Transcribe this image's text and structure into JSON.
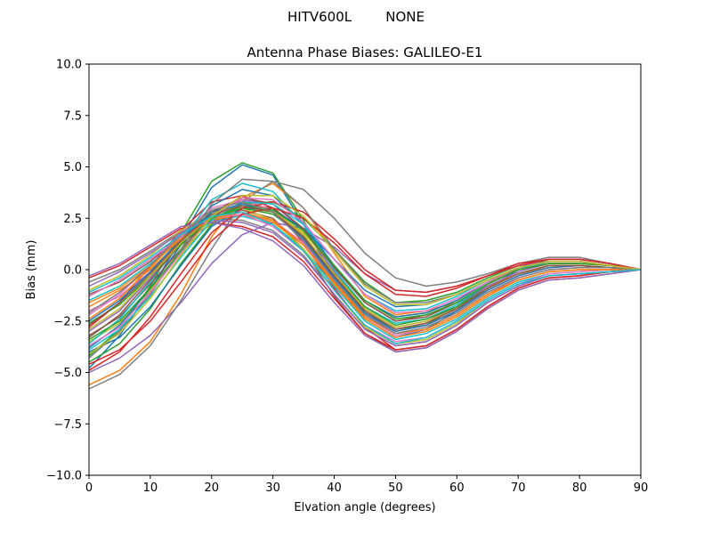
{
  "figure": {
    "suptitle": "HITV600L        NONE"
  },
  "chart_data": {
    "type": "line",
    "title": "Antenna Phase Biases: GALILEO-E1",
    "xlabel": "Elvation angle (degrees)",
    "ylabel": "Bias (mm)",
    "xlim": [
      0,
      90
    ],
    "ylim": [
      -10,
      10
    ],
    "grid": false,
    "x": [
      0,
      5,
      10,
      15,
      20,
      25,
      30,
      35,
      40,
      45,
      50,
      55,
      60,
      65,
      70,
      75,
      80,
      85,
      90
    ],
    "xticks": [
      "0",
      "10",
      "20",
      "30",
      "40",
      "50",
      "60",
      "70",
      "80",
      "90"
    ],
    "xtick_values": [
      0,
      10,
      20,
      30,
      40,
      50,
      60,
      70,
      80,
      90
    ],
    "yticks": [
      "−10.0",
      "−7.5",
      "−5.0",
      "−2.5",
      "0.0",
      "2.5",
      "5.0",
      "7.5",
      "10.0"
    ],
    "ytick_values": [
      -10,
      -7.5,
      -5,
      -2.5,
      0,
      2.5,
      5,
      7.5,
      10
    ],
    "palette": [
      "#1f77b4",
      "#ff7f0e",
      "#2ca02c",
      "#d62728",
      "#9467bd",
      "#8c564b",
      "#e377c2",
      "#7f7f7f",
      "#bcbd22",
      "#17becf"
    ],
    "series": [
      {
        "values": [
          -4.8,
          -3.2,
          -1.0,
          1.5,
          4.0,
          5.1,
          4.6,
          2.2,
          -0.5,
          -2.4,
          -3.3,
          -2.9,
          -2.0,
          -0.9,
          0.0,
          0.4,
          0.4,
          0.2,
          0.0
        ]
      },
      {
        "values": [
          -5.6,
          -4.9,
          -3.5,
          -1.2,
          1.6,
          3.5,
          4.2,
          3.0,
          0.8,
          -1.3,
          -2.2,
          -2.0,
          -1.6,
          -0.8,
          -0.2,
          0.1,
          0.2,
          0.1,
          0.0
        ]
      },
      {
        "values": [
          -4.2,
          -2.9,
          -0.8,
          1.8,
          4.3,
          5.2,
          4.7,
          2.4,
          -0.3,
          -2.1,
          -2.9,
          -2.7,
          -1.8,
          -0.7,
          0.1,
          0.5,
          0.5,
          0.3,
          0.0
        ]
      },
      {
        "values": [
          -2.8,
          -1.6,
          0.2,
          1.9,
          3.3,
          3.6,
          3.0,
          1.3,
          -0.9,
          -2.8,
          -3.9,
          -3.7,
          -2.9,
          -1.8,
          -0.9,
          -0.4,
          -0.3,
          -0.1,
          0.0
        ]
      },
      {
        "values": [
          -3.0,
          -2.0,
          -0.4,
          1.4,
          2.8,
          3.4,
          3.2,
          1.9,
          -0.1,
          -1.9,
          -2.8,
          -2.5,
          -1.8,
          -0.8,
          -0.1,
          0.3,
          0.3,
          0.2,
          0.0
        ]
      },
      {
        "values": [
          -1.2,
          -0.6,
          0.4,
          1.7,
          2.6,
          2.9,
          2.5,
          1.0,
          -1.3,
          -3.1,
          -4.0,
          -3.8,
          -3.0,
          -1.9,
          -1.0,
          -0.5,
          -0.4,
          -0.2,
          0.0
        ]
      },
      {
        "values": [
          -2.0,
          -1.3,
          -0.1,
          1.3,
          2.2,
          2.7,
          2.4,
          1.3,
          -0.6,
          -2.2,
          -3.0,
          -2.7,
          -2.0,
          -1.0,
          -0.3,
          0.1,
          0.2,
          0.1,
          0.0
        ]
      },
      {
        "values": [
          -0.6,
          0.0,
          0.9,
          1.9,
          2.5,
          2.4,
          1.9,
          0.7,
          -1.2,
          -2.9,
          -3.7,
          -3.5,
          -2.7,
          -1.6,
          -0.8,
          -0.3,
          -0.2,
          -0.1,
          0.0
        ]
      },
      {
        "values": [
          -3.5,
          -2.6,
          -1.0,
          0.8,
          2.3,
          3.0,
          2.8,
          1.8,
          0.1,
          -1.5,
          -2.3,
          -2.1,
          -1.5,
          -0.6,
          0.0,
          0.3,
          0.3,
          0.2,
          0.0
        ]
      },
      {
        "values": [
          -1.5,
          -0.8,
          0.3,
          1.5,
          2.4,
          2.6,
          2.2,
          1.0,
          -0.8,
          -2.5,
          -3.4,
          -3.1,
          -2.4,
          -1.4,
          -0.6,
          -0.2,
          -0.1,
          0.0,
          0.0
        ]
      },
      {
        "values": [
          -3.8,
          -2.7,
          -0.9,
          1.2,
          3.1,
          3.9,
          3.6,
          2.2,
          0.2,
          -1.5,
          -2.3,
          -2.1,
          -1.5,
          -0.6,
          0.1,
          0.4,
          0.4,
          0.2,
          0.0
        ]
      },
      {
        "values": [
          -2.4,
          -1.4,
          0.1,
          1.6,
          2.9,
          3.3,
          2.9,
          1.6,
          -0.3,
          -2.0,
          -2.9,
          -2.6,
          -1.9,
          -0.9,
          -0.2,
          0.2,
          0.2,
          0.1,
          0.0
        ]
      },
      {
        "values": [
          -4.5,
          -3.6,
          -1.9,
          0.3,
          2.2,
          3.2,
          3.3,
          2.5,
          1.0,
          -0.6,
          -1.6,
          -1.5,
          -1.1,
          -0.4,
          0.2,
          0.4,
          0.4,
          0.2,
          0.0
        ]
      },
      {
        "values": [
          -0.4,
          0.2,
          1.1,
          2.0,
          2.3,
          2.1,
          1.6,
          0.4,
          -1.4,
          -3.1,
          -3.9,
          -3.7,
          -2.9,
          -1.8,
          -0.9,
          -0.4,
          -0.3,
          -0.1,
          0.0
        ]
      },
      {
        "values": [
          -5.0,
          -4.3,
          -3.2,
          -1.6,
          0.3,
          1.7,
          2.3,
          2.0,
          1.1,
          -0.2,
          -1.0,
          -1.1,
          -0.8,
          -0.3,
          0.2,
          0.4,
          0.4,
          0.2,
          0.0
        ]
      },
      {
        "values": [
          -3.2,
          -2.3,
          -0.7,
          1.0,
          2.6,
          3.2,
          3.0,
          1.9,
          0.1,
          -1.6,
          -2.5,
          -2.2,
          -1.6,
          -0.7,
          0.0,
          0.3,
          0.3,
          0.2,
          0.0
        ]
      },
      {
        "values": [
          -2.2,
          -1.2,
          0.2,
          1.8,
          3.0,
          3.4,
          2.9,
          1.5,
          -0.5,
          -2.3,
          -3.2,
          -2.9,
          -2.2,
          -1.2,
          -0.4,
          0.0,
          0.1,
          0.1,
          0.0
        ]
      },
      {
        "values": [
          -5.8,
          -5.1,
          -3.7,
          -1.5,
          1.0,
          3.3,
          4.3,
          3.9,
          2.5,
          0.8,
          -0.4,
          -0.8,
          -0.6,
          -0.2,
          0.3,
          0.6,
          0.6,
          0.3,
          0.0
        ]
      },
      {
        "values": [
          -1.0,
          -0.3,
          0.7,
          1.9,
          2.8,
          3.0,
          2.4,
          1.0,
          -1.0,
          -2.8,
          -3.6,
          -3.4,
          -2.6,
          -1.5,
          -0.7,
          -0.3,
          -0.2,
          -0.1,
          0.0
        ]
      },
      {
        "values": [
          -3.6,
          -2.4,
          -0.6,
          1.4,
          3.4,
          4.2,
          3.8,
          2.2,
          0.0,
          -1.8,
          -2.6,
          -2.4,
          -1.7,
          -0.7,
          0.0,
          0.4,
          0.4,
          0.2,
          0.0
        ]
      },
      {
        "values": [
          -4.0,
          -3.3,
          -1.8,
          0.2,
          2.1,
          3.0,
          2.9,
          2.0,
          0.5,
          -1.0,
          -1.8,
          -1.7,
          -1.2,
          -0.5,
          0.1,
          0.4,
          0.4,
          0.2,
          0.0
        ]
      },
      {
        "values": [
          -1.8,
          -1.0,
          0.0,
          1.4,
          2.4,
          2.7,
          2.3,
          1.2,
          -0.6,
          -2.3,
          -3.1,
          -2.9,
          -2.2,
          -1.2,
          -0.5,
          -0.1,
          0.0,
          0.0,
          0.0
        ]
      },
      {
        "values": [
          -2.6,
          -1.7,
          -0.3,
          1.2,
          2.5,
          3.0,
          2.7,
          1.6,
          -0.2,
          -1.8,
          -2.7,
          -2.4,
          -1.8,
          -0.9,
          -0.2,
          0.2,
          0.2,
          0.1,
          0.0
        ]
      },
      {
        "values": [
          -4.9,
          -4.0,
          -2.3,
          -0.2,
          1.8,
          3.0,
          3.3,
          2.8,
          1.5,
          0.0,
          -1.0,
          -1.1,
          -0.8,
          -0.3,
          0.3,
          0.5,
          0.5,
          0.3,
          0.0
        ]
      },
      {
        "values": [
          -0.8,
          -0.1,
          0.8,
          1.8,
          2.4,
          2.3,
          1.8,
          0.6,
          -1.2,
          -2.9,
          -3.7,
          -3.5,
          -2.7,
          -1.6,
          -0.8,
          -0.3,
          -0.2,
          -0.1,
          0.0
        ]
      },
      {
        "values": [
          -3.3,
          -2.2,
          -0.5,
          1.3,
          2.8,
          3.5,
          3.2,
          2.0,
          0.1,
          -1.6,
          -2.5,
          -2.3,
          -1.6,
          -0.7,
          0.0,
          0.3,
          0.3,
          0.2,
          0.0
        ]
      },
      {
        "values": [
          -1.3,
          -0.5,
          0.5,
          1.6,
          2.5,
          2.7,
          2.1,
          0.9,
          -1.0,
          -2.7,
          -3.5,
          -3.3,
          -2.5,
          -1.5,
          -0.7,
          -0.2,
          -0.1,
          0.0,
          0.0
        ]
      },
      {
        "values": [
          -4.3,
          -3.0,
          -1.2,
          1.0,
          3.2,
          4.4,
          4.3,
          3.0,
          1.0,
          -0.7,
          -1.6,
          -1.6,
          -1.2,
          -0.5,
          0.1,
          0.4,
          0.4,
          0.2,
          0.0
        ]
      },
      {
        "values": [
          -2.9,
          -1.9,
          -0.3,
          1.3,
          2.7,
          3.2,
          2.9,
          1.7,
          -0.2,
          -1.9,
          -2.8,
          -2.5,
          -1.9,
          -0.9,
          -0.2,
          0.2,
          0.2,
          0.1,
          0.0
        ]
      },
      {
        "values": [
          -3.9,
          -2.9,
          -1.3,
          0.6,
          2.4,
          3.3,
          3.2,
          2.2,
          0.5,
          -1.2,
          -2.0,
          -1.9,
          -1.3,
          -0.5,
          0.1,
          0.4,
          0.4,
          0.2,
          0.0
        ]
      },
      {
        "values": [
          -2.5,
          -1.5,
          -0.1,
          1.5,
          2.8,
          3.2,
          2.8,
          1.5,
          -0.4,
          -2.1,
          -3.0,
          -2.7,
          -2.0,
          -1.0,
          -0.3,
          0.1,
          0.2,
          0.1,
          0.0
        ]
      },
      {
        "values": [
          -1.6,
          -0.9,
          0.2,
          1.5,
          2.5,
          2.8,
          2.4,
          1.2,
          -0.7,
          -2.4,
          -3.3,
          -3.0,
          -2.3,
          -1.3,
          -0.5,
          -0.1,
          0.0,
          0.0,
          0.0
        ]
      },
      {
        "values": [
          -3.4,
          -2.5,
          -0.9,
          0.9,
          2.5,
          3.1,
          2.9,
          1.9,
          0.2,
          -1.5,
          -2.4,
          -2.2,
          -1.6,
          -0.7,
          0.0,
          0.3,
          0.3,
          0.2,
          0.0
        ]
      },
      {
        "values": [
          -4.6,
          -3.9,
          -2.5,
          -0.6,
          1.4,
          2.7,
          3.0,
          2.5,
          1.3,
          -0.2,
          -1.2,
          -1.3,
          -0.9,
          -0.3,
          0.2,
          0.5,
          0.5,
          0.3,
          0.0
        ]
      },
      {
        "values": [
          -0.3,
          0.3,
          1.2,
          2.1,
          2.3,
          2.0,
          1.4,
          0.2,
          -1.6,
          -3.2,
          -4.0,
          -3.8,
          -3.0,
          -1.9,
          -1.0,
          -0.5,
          -0.4,
          -0.2,
          0.0
        ]
      },
      {
        "values": [
          -2.7,
          -1.6,
          -0.2,
          1.4,
          2.7,
          3.1,
          2.8,
          1.6,
          -0.3,
          -2.0,
          -2.9,
          -2.6,
          -1.9,
          -0.9,
          -0.2,
          0.2,
          0.2,
          0.1,
          0.0
        ]
      },
      {
        "values": [
          -3.7,
          -2.8,
          -1.1,
          0.8,
          2.6,
          3.5,
          3.4,
          2.3,
          0.5,
          -1.2,
          -2.1,
          -2.0,
          -1.4,
          -0.6,
          0.1,
          0.4,
          0.4,
          0.2,
          0.0
        ]
      },
      {
        "values": [
          -2.1,
          -1.1,
          0.2,
          1.7,
          2.9,
          3.3,
          2.8,
          1.4,
          -0.5,
          -2.2,
          -3.1,
          -2.8,
          -2.1,
          -1.1,
          -0.4,
          0.0,
          0.1,
          0.1,
          0.0
        ]
      },
      {
        "values": [
          -4.1,
          -3.1,
          -1.4,
          0.7,
          2.6,
          3.6,
          3.6,
          2.6,
          0.9,
          -0.8,
          -1.7,
          -1.7,
          -1.2,
          -0.5,
          0.1,
          0.4,
          0.4,
          0.2,
          0.0
        ]
      },
      {
        "values": [
          -1.1,
          -0.4,
          0.6,
          1.7,
          2.6,
          2.8,
          2.2,
          0.9,
          -1.0,
          -2.7,
          -3.6,
          -3.3,
          -2.5,
          -1.5,
          -0.7,
          -0.3,
          -0.2,
          -0.1,
          0.0
        ]
      }
    ]
  }
}
